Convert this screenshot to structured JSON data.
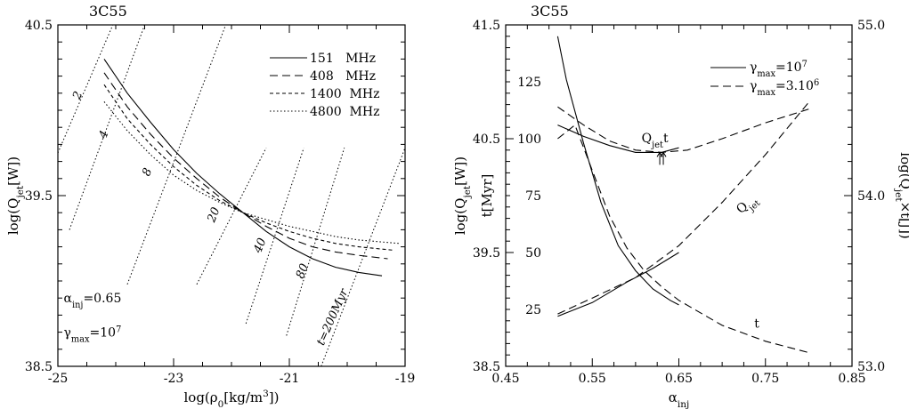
{
  "chart_data": [
    {
      "type": "line",
      "title": "3C55",
      "xlabel": "log(ρ0[kg/m3])",
      "ylabel": "log(Qjet[W])",
      "xlim": [
        -25,
        -19
      ],
      "ylim": [
        38.5,
        40.5
      ],
      "xticks": [
        "-25",
        "-23",
        "-21",
        "-19"
      ],
      "yticks": [
        "38.5",
        "39.5",
        "40.5"
      ],
      "legend_position": "top-right",
      "series": [
        {
          "name": "151   MHz",
          "style": "solid",
          "x": [
            -24.2,
            -23.8,
            -23.4,
            -23.0,
            -22.6,
            -22.2,
            -21.8,
            -21.4,
            -21.0,
            -20.6,
            -20.2,
            -19.8,
            -19.4
          ],
          "y": [
            40.3,
            40.1,
            39.93,
            39.77,
            39.63,
            39.51,
            39.4,
            39.29,
            39.2,
            39.13,
            39.08,
            39.05,
            39.03
          ]
        },
        {
          "name": "408   MHz",
          "style": "dashed",
          "x": [
            -24.2,
            -23.8,
            -23.4,
            -23.0,
            -22.6,
            -22.2,
            -21.8,
            -21.4,
            -21.0,
            -20.6,
            -20.2,
            -19.8,
            -19.3
          ],
          "y": [
            40.22,
            40.02,
            39.86,
            39.72,
            39.6,
            39.49,
            39.4,
            39.32,
            39.25,
            39.2,
            39.17,
            39.15,
            39.13
          ]
        },
        {
          "name": "1400  MHz",
          "style": "short-dashed",
          "x": [
            -24.2,
            -23.8,
            -23.4,
            -23.0,
            -22.6,
            -22.2,
            -21.8,
            -21.4,
            -21.0,
            -20.6,
            -20.2,
            -19.8,
            -19.2
          ],
          "y": [
            40.15,
            39.95,
            39.8,
            39.67,
            39.56,
            39.47,
            39.4,
            39.34,
            39.29,
            39.25,
            39.22,
            39.2,
            39.18
          ]
        },
        {
          "name": "4800  MHz",
          "style": "dotted",
          "x": [
            -24.2,
            -23.8,
            -23.4,
            -23.0,
            -22.6,
            -22.2,
            -21.8,
            -21.4,
            -21.0,
            -20.6,
            -20.2,
            -19.8,
            -19.1
          ],
          "y": [
            40.05,
            39.88,
            39.74,
            39.62,
            39.53,
            39.46,
            39.4,
            39.36,
            39.32,
            39.29,
            39.26,
            39.24,
            39.22
          ]
        }
      ],
      "age_lines": [
        {
          "label": "2",
          "x0": -25.0,
          "y0": 39.75,
          "x1": -24.05,
          "y1": 40.5,
          "lx": -24.6,
          "ly": 40.08,
          "angle": -68
        },
        {
          "label": "4",
          "x0": -24.8,
          "y0": 39.3,
          "x1": -23.5,
          "y1": 40.5,
          "lx": -24.15,
          "ly": 39.85,
          "angle": -68
        },
        {
          "label": "8",
          "x0": -23.8,
          "y0": 38.98,
          "x1": -22.1,
          "y1": 40.5,
          "lx": -23.4,
          "ly": 39.63,
          "angle": -68
        },
        {
          "label": "20",
          "x0": -22.6,
          "y0": 38.98,
          "x1": -21.4,
          "y1": 39.78,
          "lx": -22.25,
          "ly": 39.38,
          "angle": -68
        },
        {
          "label": "40",
          "x0": -21.75,
          "y0": 38.75,
          "x1": -20.75,
          "y1": 39.78,
          "lx": -21.45,
          "ly": 39.2,
          "angle": -68
        },
        {
          "label": "80",
          "x0": -21.05,
          "y0": 38.68,
          "x1": -20.05,
          "y1": 39.78,
          "lx": -20.72,
          "ly": 39.05,
          "angle": -68
        },
        {
          "label": "t=200Myr",
          "x0": -20.45,
          "y0": 38.5,
          "x1": -19.0,
          "y1": 39.78,
          "lx": -20.2,
          "ly": 38.78,
          "angle": -66
        }
      ],
      "annotations": [
        {
          "text": "αinj=0.65",
          "x": -24.9,
          "y": 38.9
        },
        {
          "text": "γmax=107",
          "x": -24.9,
          "y": 38.7
        }
      ]
    },
    {
      "type": "line",
      "title": "3C55",
      "xlabel": "αinj",
      "ylabel": "log(Qjet[W])",
      "ylabel_inner": "t[Myr]",
      "ylabel_right": "log(Qjet×t[J])",
      "xlim": [
        0.45,
        0.85
      ],
      "ylim": [
        38.5,
        41.5
      ],
      "ylim_t": [
        0,
        150
      ],
      "ylim_right": [
        53.0,
        55.0
      ],
      "xticks": [
        "0.45",
        "0.55",
        "0.65",
        "0.75",
        "0.85"
      ],
      "yticks": [
        "38.5",
        "39.5",
        "40.5",
        "41.5"
      ],
      "yticks_t": [
        "25",
        "50",
        "75",
        "100",
        "125"
      ],
      "yticks_right": [
        "53.0",
        "54.0",
        "55.0"
      ],
      "legend_position": "top-right",
      "legend": [
        {
          "text": "γmax=107",
          "style": "solid"
        },
        {
          "text": "γmax=3.106",
          "style": "dashed"
        }
      ],
      "series": [
        {
          "name": "Qjet",
          "style": "solid",
          "x": [
            0.51,
            0.55,
            0.59,
            0.62,
            0.65
          ],
          "y_t": [
            22,
            28,
            37,
            43,
            50
          ]
        },
        {
          "name": "Qjet",
          "style": "dashed",
          "x": [
            0.51,
            0.55,
            0.6,
            0.65,
            0.7,
            0.75,
            0.8
          ],
          "y_t": [
            23,
            30,
            39,
            53,
            72,
            93,
            116
          ]
        },
        {
          "name": "t",
          "style": "solid",
          "x": [
            0.51,
            0.52,
            0.54,
            0.56,
            0.58,
            0.6,
            0.62,
            0.64,
            0.65
          ],
          "y_t": [
            145,
            126,
            98,
            72,
            53,
            42,
            34,
            29,
            27
          ]
        },
        {
          "name": "t",
          "style": "dashed",
          "x": [
            0.51,
            0.53,
            0.55,
            0.57,
            0.59,
            0.61,
            0.63,
            0.65,
            0.7,
            0.75,
            0.8
          ],
          "y_t": [
            100,
            106,
            86,
            66,
            52,
            42,
            35,
            29,
            18,
            11,
            6
          ]
        },
        {
          "name": "Qjet t",
          "style": "solid",
          "x": [
            0.51,
            0.54,
            0.57,
            0.6,
            0.63,
            0.65
          ],
          "y_t": [
            106,
            101,
            97,
            94,
            94,
            96
          ]
        },
        {
          "name": "Qjet t",
          "style": "dashed",
          "x": [
            0.51,
            0.54,
            0.57,
            0.6,
            0.63,
            0.66,
            0.7,
            0.75,
            0.8
          ],
          "y_t": [
            114,
            106,
            99,
            95,
            94,
            95,
            100,
            107,
            113
          ]
        }
      ],
      "minimum_marker": {
        "x": 0.63,
        "y_t": 94
      },
      "curve_labels": [
        {
          "text": "Qjet t",
          "x": 0.61,
          "y_t": 100
        },
        {
          "text": "Qjet",
          "x": 0.73,
          "y_t": 70
        },
        {
          "text": "t",
          "x": 0.74,
          "y_t": 18
        }
      ]
    }
  ]
}
